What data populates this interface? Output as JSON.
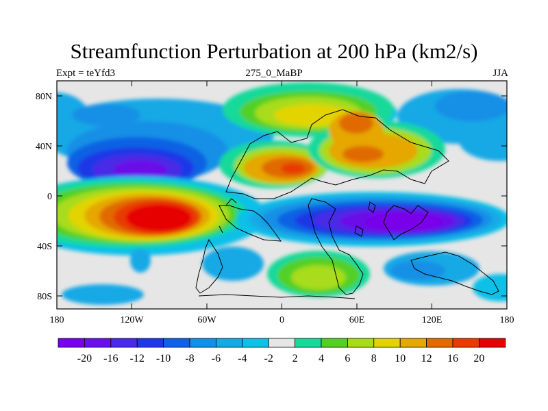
{
  "title": "Streamfunction Perturbation at 200 hPa (km2/s)",
  "left_label": "Expt = teYfd3",
  "center_label": "275_0_MaBP",
  "right_label": "JJA",
  "lat_ticks": [
    "80N",
    "40N",
    "0",
    "40S",
    "80S"
  ],
  "lon_ticks": [
    "180",
    "120W",
    "60W",
    "0",
    "60E",
    "120E",
    "180"
  ],
  "colorbar": {
    "labels": [
      "-20",
      "-16",
      "-12",
      "-10",
      "-8",
      "-6",
      "-4",
      "-2",
      "2",
      "4",
      "6",
      "8",
      "10",
      "12",
      "16",
      "20"
    ],
    "colors": [
      "#7a00ea",
      "#6a10e8",
      "#4a2ae6",
      "#1f38e6",
      "#0f62e4",
      "#128fe6",
      "#17a9e6",
      "#10c0e8",
      "#e6e6e6",
      "#19d99a",
      "#52d026",
      "#a8dc1a",
      "#e3d400",
      "#e5a700",
      "#e06b00",
      "#e83b00",
      "#e60000"
    ]
  },
  "colors": {
    "background": "#e6e6e6",
    "coastline": "#000000"
  }
}
